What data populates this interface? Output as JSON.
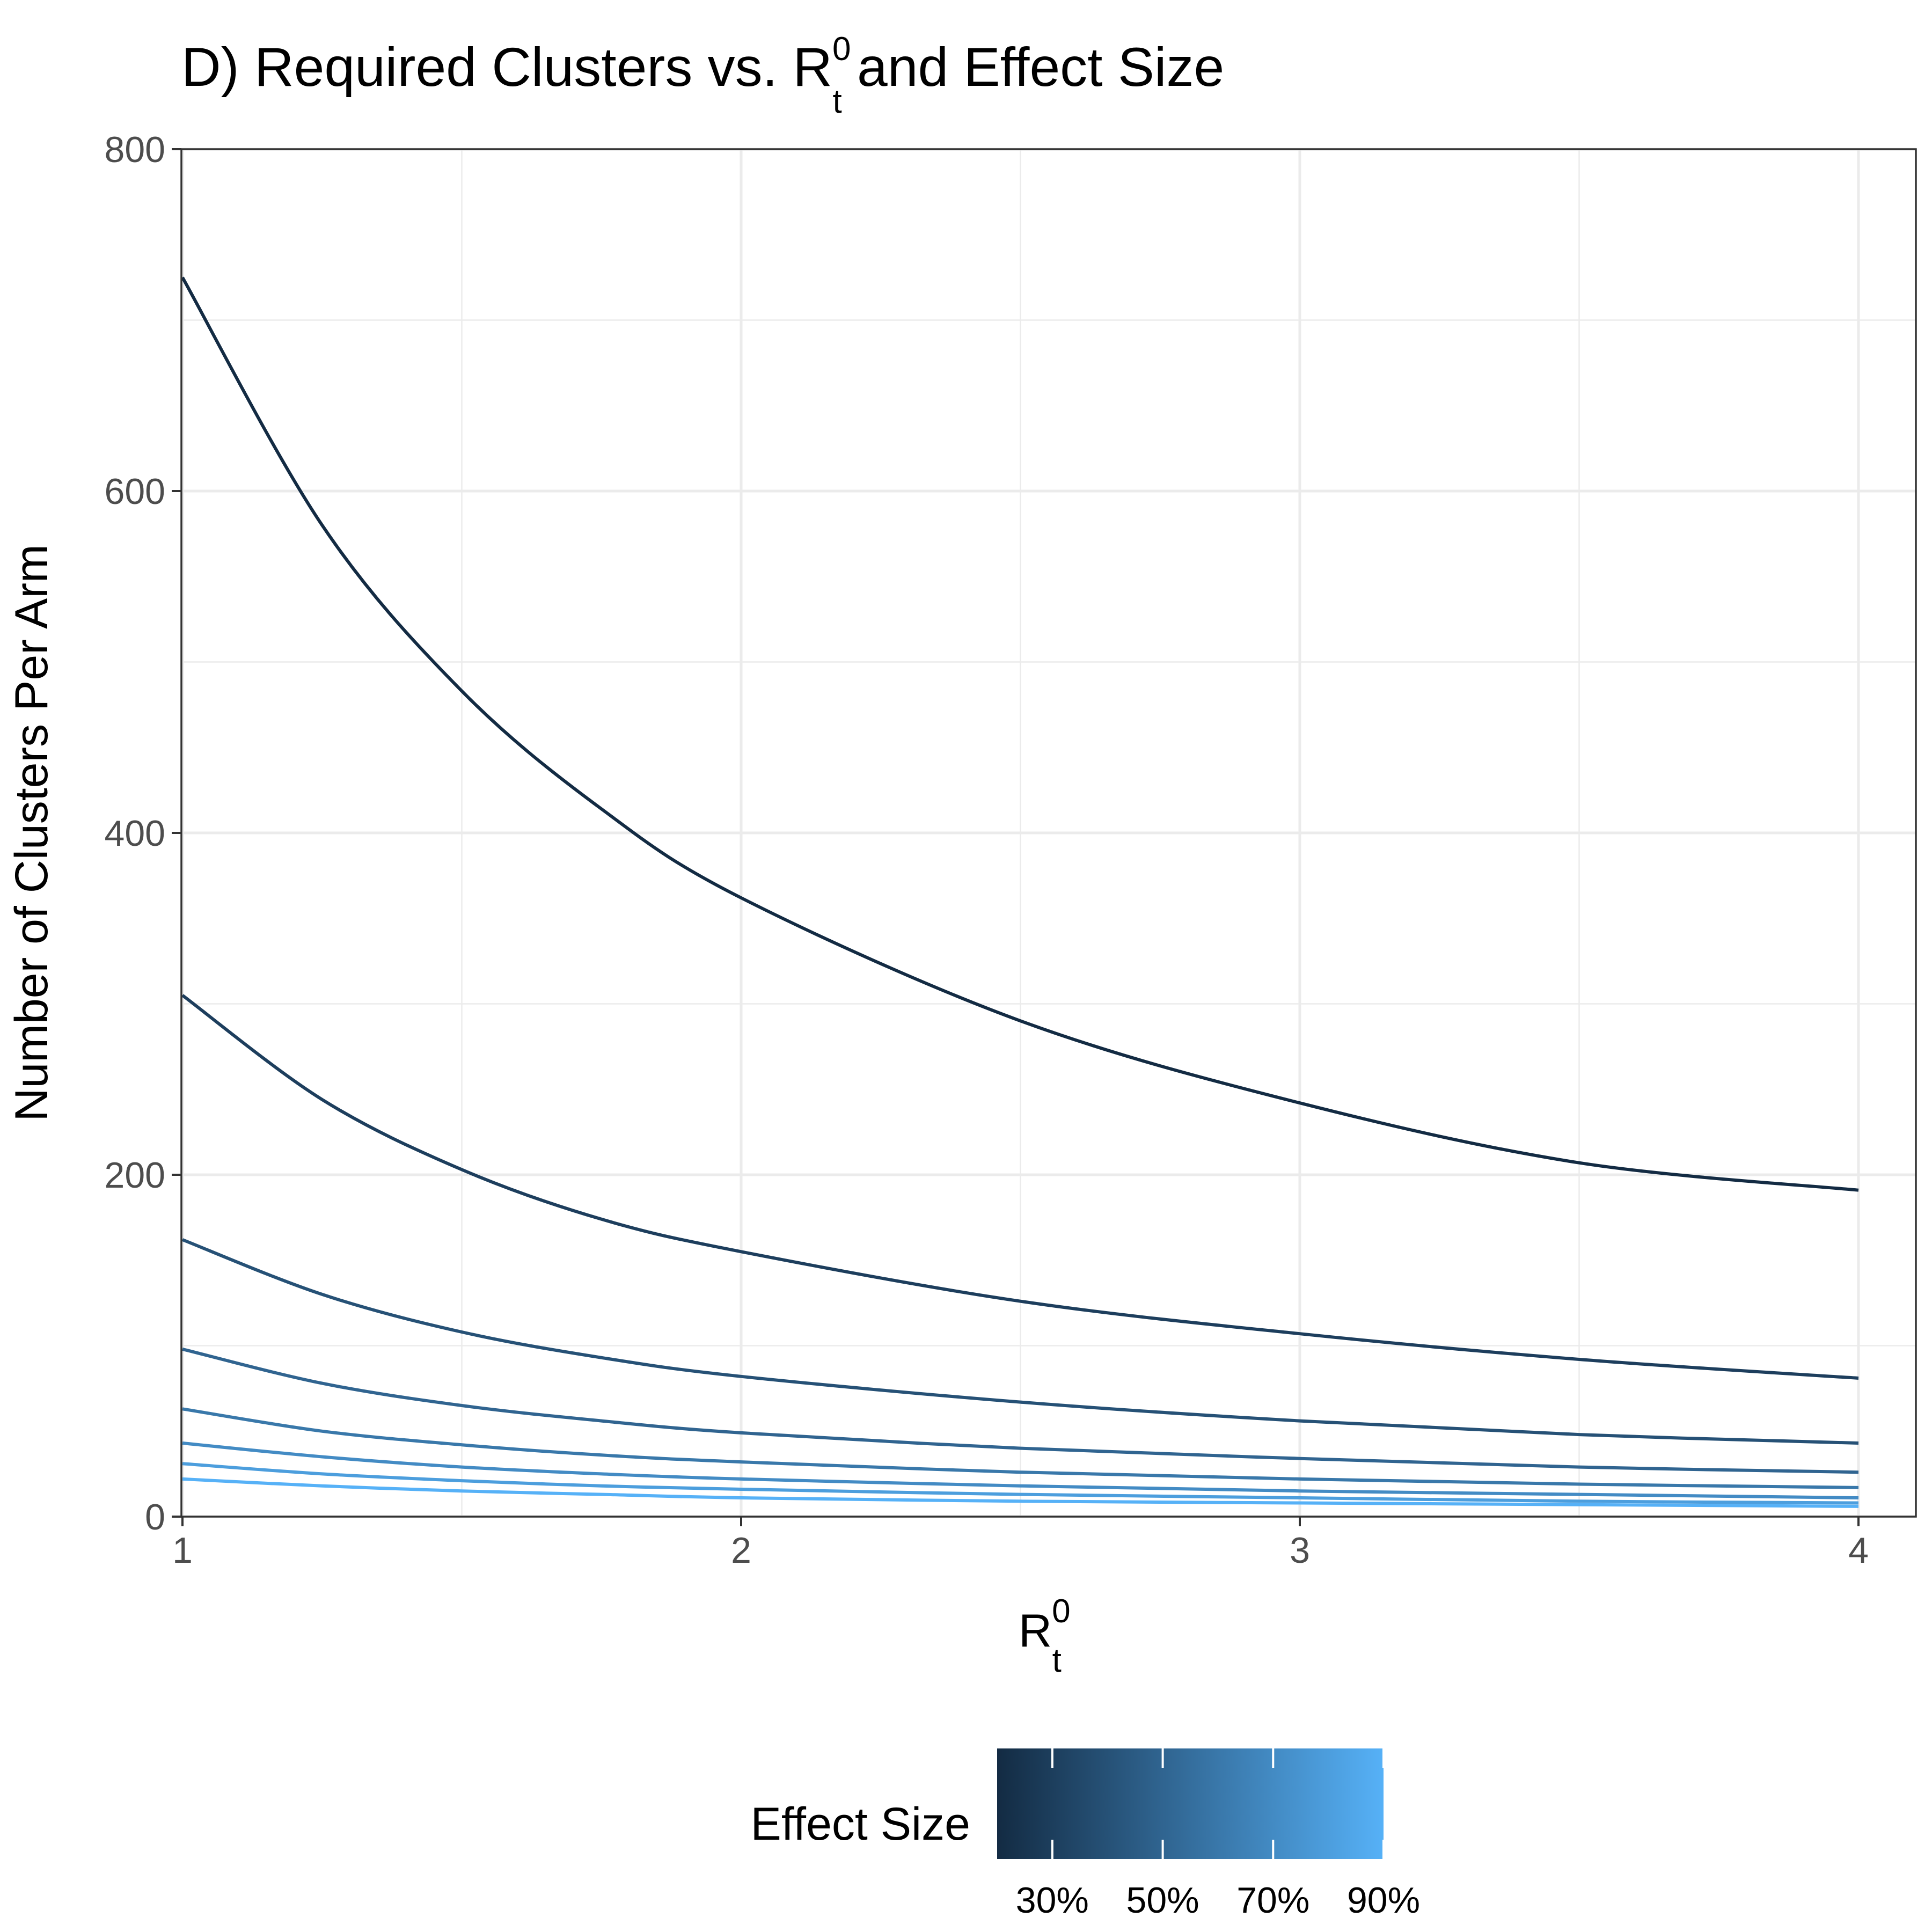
{
  "chart_data": {
    "type": "line",
    "title": {
      "prefix": "D) Required Clusters vs. R",
      "sub": "t",
      "sup": "0",
      "suffix": " and Effect Size"
    },
    "xlabel": {
      "base": "R",
      "sub": "t",
      "sup": "0"
    },
    "ylabel": "Number of Clusters Per Arm",
    "xlim": [
      1,
      4
    ],
    "ylim": [
      0,
      800
    ],
    "x_ticks": [
      "1",
      "2",
      "3",
      "4"
    ],
    "y_ticks": [
      "0",
      "200",
      "400",
      "600",
      "800"
    ],
    "grid": true,
    "legend": {
      "title": "Effect Size",
      "placement": "bottom",
      "type": "colorbar",
      "labels": [
        "30%",
        "50%",
        "70%",
        "90%"
      ],
      "range": [
        20,
        90
      ],
      "color_low": "#132B43",
      "color_high": "#56B1F7"
    },
    "series": [
      {
        "effect": 20,
        "x": [
          1,
          1.25,
          1.5,
          1.75,
          2,
          2.5,
          3,
          3.5,
          4
        ],
        "y": [
          725,
          580,
          483,
          414,
          362,
          290,
          242,
          207,
          191
        ]
      },
      {
        "effect": 30,
        "x": [
          1,
          1.25,
          1.5,
          1.75,
          2,
          2.5,
          3,
          3.5,
          4
        ],
        "y": [
          305,
          244,
          203,
          174,
          155,
          126,
          107,
          92,
          81
        ]
      },
      {
        "effect": 40,
        "x": [
          1,
          1.25,
          1.5,
          1.75,
          2,
          2.5,
          3,
          3.5,
          4
        ],
        "y": [
          162,
          130,
          108,
          93,
          82,
          67,
          56,
          48,
          43
        ]
      },
      {
        "effect": 50,
        "x": [
          1,
          1.25,
          1.5,
          1.75,
          2,
          2.5,
          3,
          3.5,
          4
        ],
        "y": [
          98,
          78,
          65,
          56,
          49,
          40,
          34,
          29,
          26
        ]
      },
      {
        "effect": 60,
        "x": [
          1,
          1.25,
          1.5,
          1.75,
          2,
          2.5,
          3,
          3.5,
          4
        ],
        "y": [
          63,
          50,
          42,
          36,
          32,
          26,
          22,
          19,
          17
        ]
      },
      {
        "effect": 70,
        "x": [
          1,
          1.25,
          1.5,
          1.75,
          2,
          2.5,
          3,
          3.5,
          4
        ],
        "y": [
          43,
          35,
          29,
          25,
          22,
          18,
          15,
          13,
          11
        ]
      },
      {
        "effect": 80,
        "x": [
          1,
          1.25,
          1.5,
          1.75,
          2,
          2.5,
          3,
          3.5,
          4
        ],
        "y": [
          31,
          25,
          21,
          18,
          16,
          13,
          11,
          9,
          8
        ]
      },
      {
        "effect": 90,
        "x": [
          1,
          1.25,
          1.5,
          1.75,
          2,
          2.5,
          3,
          3.5,
          4
        ],
        "y": [
          22,
          18,
          15,
          13,
          11,
          9,
          8,
          7,
          6
        ]
      }
    ]
  }
}
